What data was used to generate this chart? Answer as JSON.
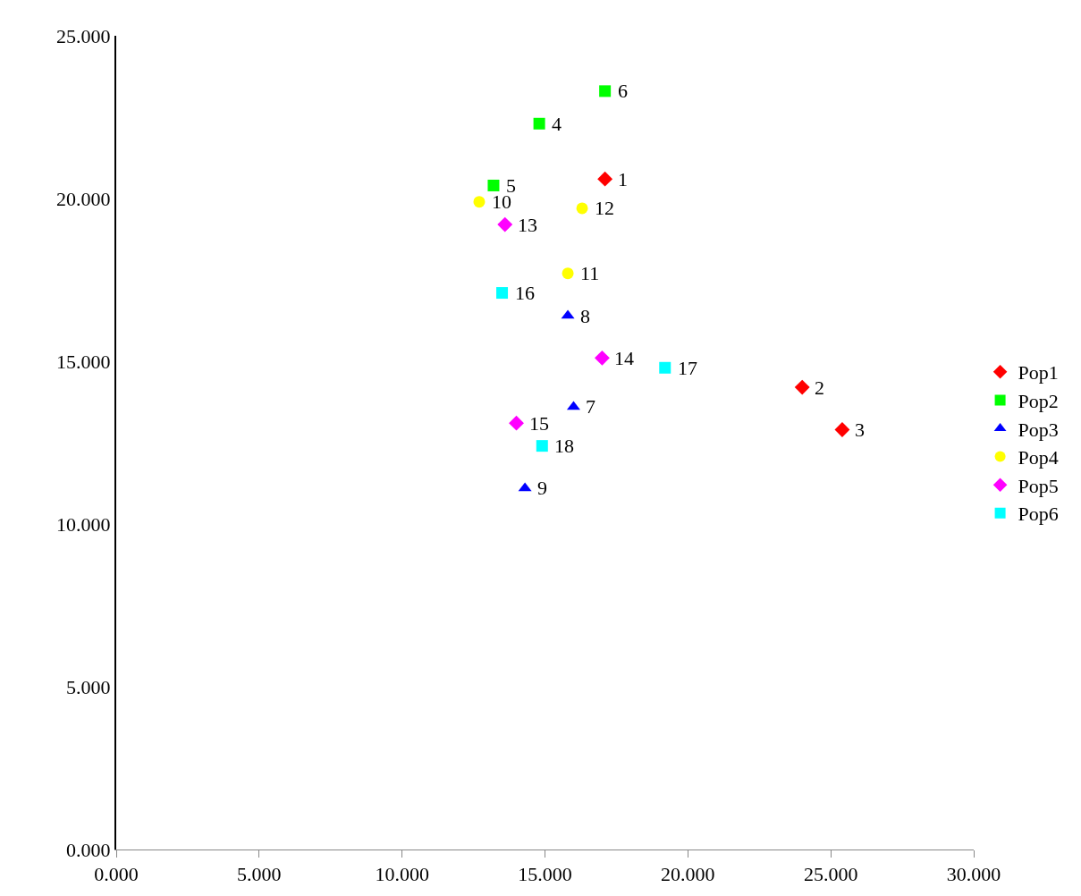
{
  "chart_data": {
    "type": "scatter",
    "legend": "right",
    "xlim": [
      0,
      30
    ],
    "ylim": [
      0,
      25
    ],
    "xticks": [
      {
        "value": 0,
        "label": "0.000"
      },
      {
        "value": 5,
        "label": "5.000"
      },
      {
        "value": 10,
        "label": "10.000"
      },
      {
        "value": 15,
        "label": "15.000"
      },
      {
        "value": 20,
        "label": "20.000"
      },
      {
        "value": 25,
        "label": "25.000"
      },
      {
        "value": 30,
        "label": "30.000"
      }
    ],
    "yticks": [
      {
        "value": 0,
        "label": "0.000"
      },
      {
        "value": 5,
        "label": "5.000"
      },
      {
        "value": 10,
        "label": "10.000"
      },
      {
        "value": 15,
        "label": "15.000"
      },
      {
        "value": 20,
        "label": "20.000"
      },
      {
        "value": 25,
        "label": "25.000"
      }
    ],
    "series": [
      {
        "name": "Pop1",
        "color": "#ff0000",
        "marker": "diamond",
        "x": [
          17.1,
          24.0,
          25.4
        ],
        "values": [
          20.6,
          14.2,
          12.9
        ]
      },
      {
        "name": "Pop2",
        "color": "#00ff00",
        "marker": "square",
        "x": [
          14.8,
          13.2,
          17.1
        ],
        "values": [
          22.3,
          20.4,
          23.3
        ]
      },
      {
        "name": "Pop3",
        "color": "#0000ff",
        "marker": "triangle",
        "x": [
          16.0,
          15.8,
          14.3
        ],
        "values": [
          13.6,
          16.4,
          11.1
        ]
      },
      {
        "name": "Pop4",
        "color": "#ffff00",
        "marker": "circle",
        "x": [
          12.7,
          15.8,
          16.3
        ],
        "values": [
          19.9,
          17.7,
          19.7
        ]
      },
      {
        "name": "Pop5",
        "color": "#ff00ff",
        "marker": "diamond",
        "x": [
          13.6,
          17.0,
          14.0
        ],
        "values": [
          19.2,
          15.1,
          13.1
        ]
      },
      {
        "name": "Pop6",
        "color": "#00ffff",
        "marker": "square",
        "x": [
          13.5,
          19.2,
          14.9
        ],
        "values": [
          17.1,
          14.8,
          12.4
        ]
      }
    ],
    "annotations": [
      {
        "text": "1",
        "x": 17.1,
        "y": 20.6
      },
      {
        "text": "2",
        "x": 24.0,
        "y": 14.2
      },
      {
        "text": "3",
        "x": 25.4,
        "y": 12.9
      },
      {
        "text": "4",
        "x": 14.8,
        "y": 22.3
      },
      {
        "text": "5",
        "x": 13.2,
        "y": 20.4
      },
      {
        "text": "6",
        "x": 17.1,
        "y": 23.3
      },
      {
        "text": "7",
        "x": 16.0,
        "y": 13.6
      },
      {
        "text": "8",
        "x": 15.8,
        "y": 16.4
      },
      {
        "text": "9",
        "x": 14.3,
        "y": 11.1
      },
      {
        "text": "10",
        "x": 12.7,
        "y": 19.9
      },
      {
        "text": "11",
        "x": 15.8,
        "y": 17.7
      },
      {
        "text": "12",
        "x": 16.3,
        "y": 19.7
      },
      {
        "text": "13",
        "x": 13.6,
        "y": 19.2
      },
      {
        "text": "14",
        "x": 17.0,
        "y": 15.1
      },
      {
        "text": "15",
        "x": 14.0,
        "y": 13.1
      },
      {
        "text": "16",
        "x": 13.5,
        "y": 17.1
      },
      {
        "text": "17",
        "x": 19.2,
        "y": 14.8
      },
      {
        "text": "18",
        "x": 14.9,
        "y": 12.4
      }
    ]
  }
}
